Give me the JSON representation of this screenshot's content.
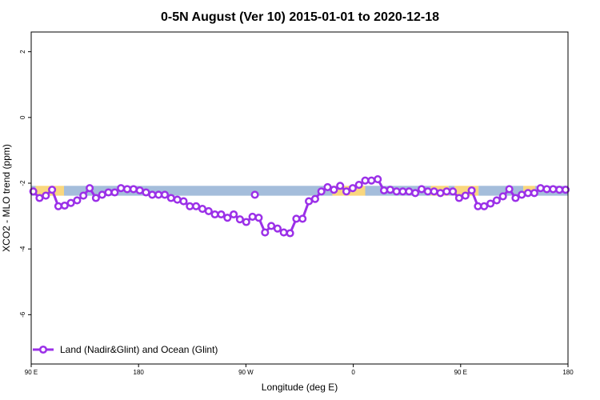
{
  "chart_data": {
    "type": "line",
    "title": "0-5N August (Ver 10)   2015-01-01 to 2020-12-18",
    "xlabel": "Longitude (deg E)",
    "ylabel": "XCO2 - MLO trend (ppm)",
    "xlim": [
      -180,
      180
    ],
    "ylim": [
      -7.5,
      2.6
    ],
    "x_ticks": [
      {
        "value": -180,
        "label": "90 E"
      },
      {
        "value": -108,
        "label": "180"
      },
      {
        "value": -36,
        "label": "90 W"
      },
      {
        "value": 36,
        "label": "0"
      },
      {
        "value": 108,
        "label": "90 E"
      },
      {
        "value": 180,
        "label": "180"
      }
    ],
    "y_ticks": [
      {
        "value": -6,
        "label": "-6"
      },
      {
        "value": -4,
        "label": "-4"
      },
      {
        "value": -2,
        "label": "-2"
      },
      {
        "value": 0,
        "label": "0"
      },
      {
        "value": 2,
        "label": "2"
      }
    ],
    "surface_band": {
      "y_range": [
        -2.38,
        -2.08
      ],
      "segments": [
        {
          "type": "ocean",
          "x": [
            -180,
            -177
          ],
          "color": "#a4bddb"
        },
        {
          "type": "land",
          "x": [
            -177,
            -158
          ],
          "color": "#f9d77e"
        },
        {
          "type": "ocean",
          "x": [
            -158,
            22
          ],
          "color": "#a4bddb"
        },
        {
          "type": "land",
          "x": [
            22,
            44
          ],
          "color": "#f9d77e"
        },
        {
          "type": "ocean",
          "x": [
            44,
            88
          ],
          "color": "#a4bddb"
        },
        {
          "type": "land",
          "x": [
            88,
            100
          ],
          "color": "#f9d77e"
        },
        {
          "type": "ocean",
          "x": [
            100,
            104
          ],
          "color": "#a4bddb"
        },
        {
          "type": "land",
          "x": [
            104,
            120
          ],
          "color": "#f9d77e"
        },
        {
          "type": "ocean",
          "x": [
            120,
            150
          ],
          "color": "#a4bddb"
        },
        {
          "type": "land",
          "x": [
            150,
            158
          ],
          "color": "#f9d77e"
        },
        {
          "type": "ocean",
          "x": [
            158,
            180
          ],
          "color": "#a4bddb"
        }
      ]
    },
    "series": [
      {
        "name": "Land (Nadir&Glint) and Ocean (Glint)",
        "color": "#9b30e8",
        "segments": [
          {
            "x": [
              -178.6,
              -174.4,
              -170.2,
              -166.0,
              -161.8,
              -157.6,
              -153.4,
              -149.2,
              -145.0,
              -140.8,
              -136.6,
              -132.4,
              -128.2,
              -124.0,
              -119.8,
              -115.6,
              -111.4,
              -107.2,
              -103.0,
              -98.8,
              -94.6,
              -90.4,
              -86.2,
              -82.0,
              -77.8,
              -73.6,
              -69.4,
              -65.2,
              -61.0,
              -56.8,
              -52.6,
              -48.4,
              -44.2,
              -40.0,
              -35.8,
              -31.6,
              -27.4,
              -23.2,
              -19.0,
              -14.8,
              -10.6,
              -6.4,
              -2.2,
              2.0,
              6.2,
              10.4,
              14.6,
              18.8,
              23.0,
              27.2,
              31.4,
              35.6,
              39.8,
              44.0,
              48.2
            ],
            "y": [
              -2.25,
              -2.45,
              -2.38,
              -2.2,
              -2.7,
              -2.68,
              -2.6,
              -2.52,
              -2.38,
              -2.15,
              -2.45,
              -2.35,
              -2.28,
              -2.28,
              -2.15,
              -2.18,
              -2.18,
              -2.22,
              -2.28,
              -2.35,
              -2.35,
              -2.35,
              -2.45,
              -2.5,
              -2.55,
              -2.7,
              -2.7,
              -2.78,
              -2.85,
              -2.95,
              -2.95,
              -3.05,
              -2.95,
              -3.1,
              -3.18,
              -3.02,
              -3.05,
              -3.5,
              -3.3,
              -3.38,
              -3.5,
              -3.52,
              -3.08,
              -3.08,
              -2.55,
              -2.48,
              -2.25,
              -2.12,
              -2.2,
              -2.08,
              -2.25,
              -2.15,
              -2.05,
              -1.92,
              -1.92
            ]
          },
          {
            "x": [
              52.4,
              56.6,
              60.8,
              65.0,
              69.2,
              73.4,
              77.6,
              81.8,
              86.0,
              90.2,
              94.4,
              98.6,
              102.8,
              107.0,
              111.2,
              115.4,
              119.6,
              123.8,
              128.0,
              132.2,
              136.4,
              140.6,
              144.8,
              149.0,
              153.2,
              157.4,
              161.6,
              165.8,
              170.0,
              174.2,
              178.4
            ],
            "y": [
              -1.88,
              -2.22,
              -2.2,
              -2.25,
              -2.25,
              -2.25,
              -2.3,
              -2.18,
              -2.25,
              -2.25,
              -2.3,
              -2.25,
              -2.25,
              -2.45,
              -2.38,
              -2.22,
              -2.7,
              -2.7,
              -2.62,
              -2.52,
              -2.4,
              -2.18,
              -2.45,
              -2.35,
              -2.3,
              -2.3,
              -2.15,
              -2.18,
              -2.18,
              -2.2,
              -2.2
            ]
          },
          {
            "x": [
              -30.0
            ],
            "y": [
              -2.35
            ]
          }
        ]
      }
    ],
    "legend": {
      "position": "bottom-left",
      "label": "Land (Nadir&Glint) and Ocean (Glint)"
    }
  }
}
